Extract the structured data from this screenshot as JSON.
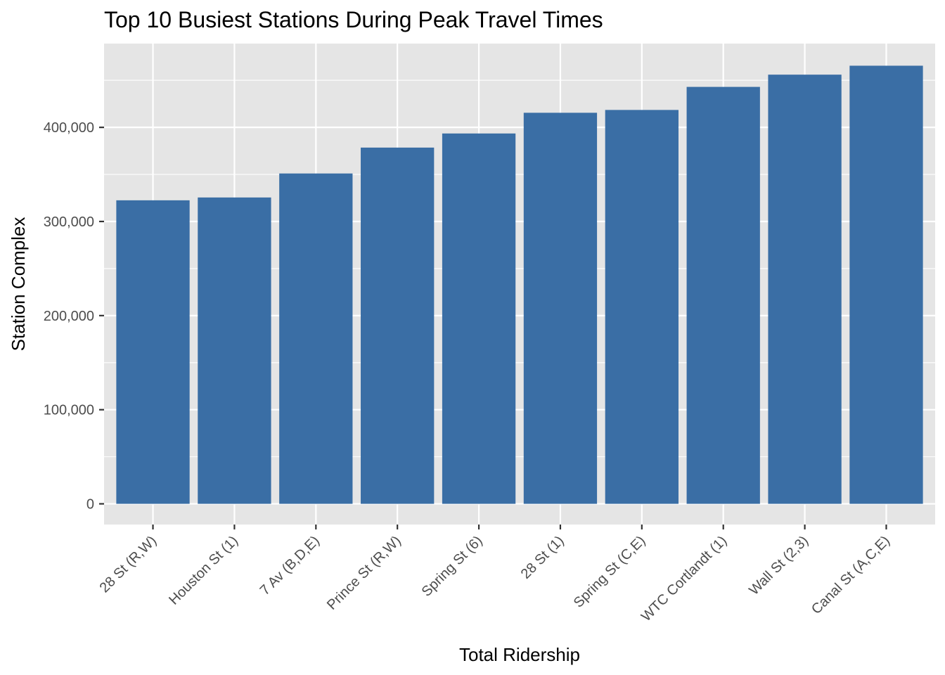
{
  "chart_data": {
    "type": "bar",
    "title": "Top 10 Busiest Stations During Peak Travel Times",
    "xlabel": "Total Ridership",
    "ylabel": "Station Complex",
    "categories": [
      "28 St (R,W)",
      "Houston St (1)",
      "7 Av (B,D,E)",
      "Prince St (R,W)",
      "Spring St (6)",
      "28 St (1)",
      "Spring St (C,E)",
      "WTC Cortlandt (1)",
      "Wall St (2,3)",
      "Canal St (A,C,E)"
    ],
    "values": [
      322500,
      325500,
      351000,
      378500,
      393500,
      415500,
      418500,
      443000,
      456000,
      465500
    ],
    "ylim": [
      -22000,
      489000
    ],
    "yticks": [
      0,
      100000,
      200000,
      300000,
      400000
    ],
    "ytick_labels": [
      "0",
      "100,000",
      "200,000",
      "300,000",
      "400,000"
    ],
    "bar_color": "#3a6ea5",
    "panel_color": "#e5e5e5",
    "grid": true,
    "legend": "none"
  }
}
